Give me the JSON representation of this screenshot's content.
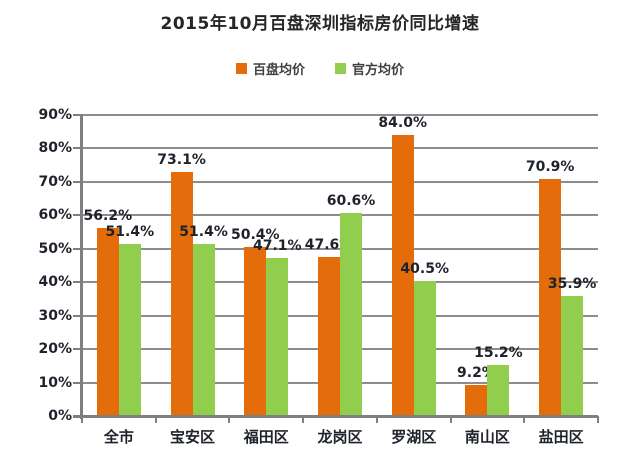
{
  "title": "2015年10月百盘深圳指标房价同比增速",
  "chart_data": {
    "type": "bar",
    "title": "2015年10月百盘深圳指标房价同比增速",
    "categories": [
      "全市",
      "宝安区",
      "福田区",
      "龙岗区",
      "罗湖区",
      "南山区",
      "盐田区"
    ],
    "series": [
      {
        "name": "百盘均价",
        "color": "#E46C0A",
        "values": [
          56.2,
          73.1,
          50.4,
          47.6,
          84.0,
          9.2,
          70.9
        ],
        "labels": [
          "56.2%",
          "73.1%",
          "50.4%",
          "47.6%",
          "84.0%",
          "9.2%",
          "70.9%"
        ]
      },
      {
        "name": "官方均价",
        "color": "#92CE4E",
        "values": [
          51.4,
          51.4,
          47.1,
          60.6,
          40.5,
          15.2,
          35.9
        ],
        "labels": [
          "51.4%",
          "51.4%",
          "47.1%",
          "60.6%",
          "40.5%",
          "15.2%",
          "35.9%"
        ]
      }
    ],
    "xlabel": "",
    "ylabel": "",
    "ylim": [
      0,
      90
    ],
    "ytick_step": 10,
    "ytick_labels": [
      "0%",
      "10%",
      "20%",
      "30%",
      "40%",
      "50%",
      "60%",
      "70%",
      "80%",
      "90%"
    ],
    "grid": true,
    "legend_position": "top",
    "data_labels": "outside-end"
  },
  "colors": {
    "background": "#ffffff",
    "text": "#1e222b",
    "title_text": "#262626",
    "gridline": "#8c8c8c",
    "axis": "#7f7f7f"
  }
}
